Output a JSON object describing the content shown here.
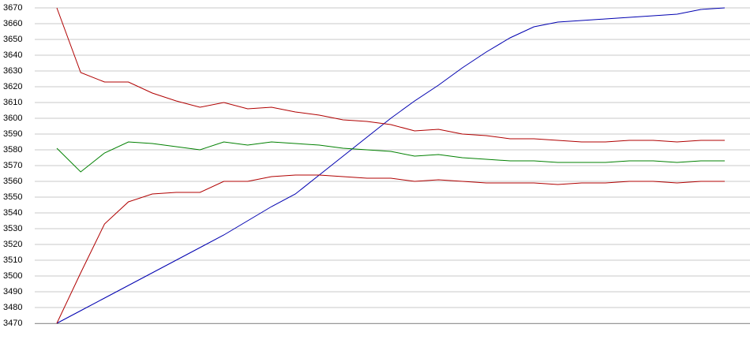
{
  "chart_data": {
    "type": "line",
    "categories": [
      null,
      null,
      null,
      null,
      null,
      null,
      null,
      null,
      null,
      null,
      null,
      null,
      null,
      null,
      null,
      null,
      null,
      null,
      null,
      null,
      null,
      null,
      null,
      null,
      null,
      null,
      null,
      null,
      null
    ],
    "series": [
      {
        "color": "#0000b0",
        "values": [
          3470,
          3478,
          3486,
          3494,
          3502,
          3510,
          3518,
          3526,
          3535,
          3544,
          3552,
          3564,
          3576,
          3588,
          3600,
          3611,
          3621,
          3632,
          3642,
          3651,
          3658,
          3661,
          3662,
          3663,
          3664,
          3665,
          3666,
          3669,
          3670
        ]
      },
      {
        "color": "#b00000",
        "values": [
          3670,
          3629,
          3623,
          3623,
          3616,
          3611,
          3607,
          3610,
          3606,
          3607,
          3604,
          3602,
          3599,
          3598,
          3596,
          3592,
          3593,
          3590,
          3589,
          3587,
          3587,
          3586,
          3585,
          3585,
          3586,
          3586,
          3585,
          3586,
          3586
        ]
      },
      {
        "color": "#008000",
        "values": [
          3581,
          3566,
          3578,
          3585,
          3584,
          3582,
          3580,
          3585,
          3583,
          3585,
          3584,
          3583,
          3581,
          3580,
          3579,
          3576,
          3577,
          3575,
          3574,
          3573,
          3573,
          3572,
          3572,
          3572,
          3573,
          3573,
          3572,
          3573,
          3573
        ]
      },
      {
        "color": "#b00000",
        "values": [
          3470,
          3502,
          3533,
          3547,
          3552,
          3553,
          3553,
          3560,
          3560,
          3563,
          3564,
          3564,
          3563,
          3562,
          3562,
          3560,
          3561,
          3560,
          3559,
          3559,
          3559,
          3558,
          3559,
          3559,
          3560,
          3560,
          3559,
          3560,
          3560
        ]
      }
    ],
    "ylim": [
      3470,
      3670
    ],
    "yticks": [
      3470,
      3480,
      3490,
      3500,
      3510,
      3520,
      3530,
      3540,
      3550,
      3560,
      3570,
      3580,
      3590,
      3600,
      3610,
      3620,
      3630,
      3640,
      3650,
      3660,
      3670
    ],
    "grid": true
  }
}
